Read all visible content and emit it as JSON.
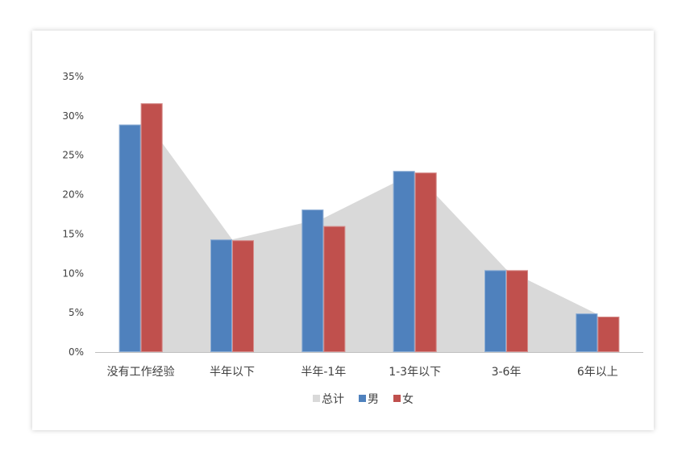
{
  "chart_data": {
    "type": "bar",
    "categories": [
      "没有工作经验",
      "半年以下",
      "半年-1年",
      "1-3年以下",
      "3-6年",
      "6年以上"
    ],
    "series": [
      {
        "name": "总计",
        "chart_type": "area",
        "values": [
          30.3,
          14.3,
          17.0,
          22.8,
          10.5,
          4.8
        ],
        "color": "#D9D9D9"
      },
      {
        "name": "男",
        "chart_type": "bar",
        "values": [
          28.9,
          14.3,
          18.1,
          23.0,
          10.4,
          4.9
        ],
        "color": "#4F81BD"
      },
      {
        "name": "女",
        "chart_type": "bar",
        "values": [
          31.6,
          14.2,
          16.0,
          22.8,
          10.4,
          4.5
        ],
        "color": "#C0504D"
      }
    ],
    "ylim": [
      0,
      35
    ],
    "yticks": [
      "0%",
      "5%",
      "10%",
      "15%",
      "20%",
      "25%",
      "30%",
      "35%"
    ],
    "ytick_values": [
      0,
      5,
      10,
      15,
      20,
      25,
      30,
      35
    ],
    "y_unit": "%",
    "grid": false,
    "legend_position": "bottom"
  }
}
